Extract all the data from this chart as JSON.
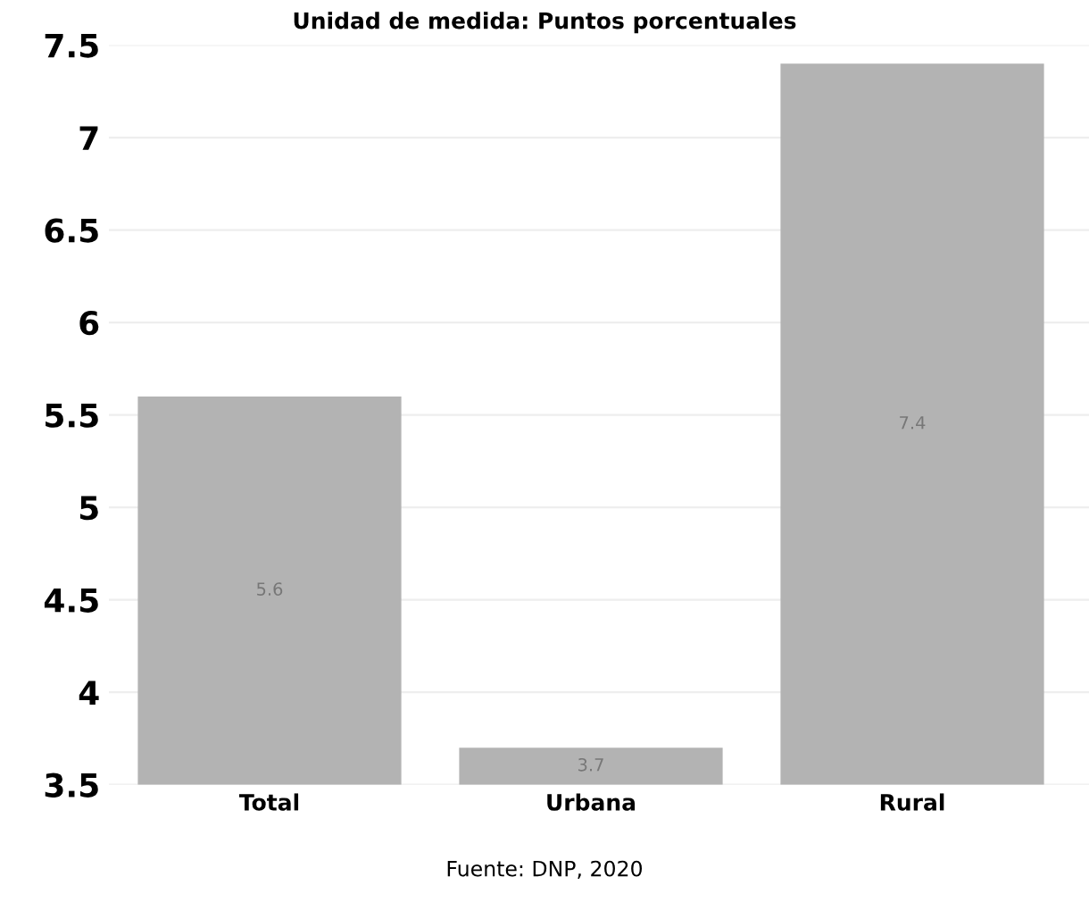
{
  "chart_data": {
    "type": "bar",
    "title": "Unidad de medida: Puntos porcentuales",
    "categories": [
      "Total",
      "Urbana",
      "Rural"
    ],
    "values": [
      5.6,
      3.7,
      7.4
    ],
    "color": "#b3b3b3",
    "ylim": [
      3.5,
      7.5
    ],
    "yticks": [
      3.5,
      4,
      4.5,
      5,
      5.5,
      6,
      6.5,
      7,
      7.5
    ],
    "grid": "y",
    "data_labels": true,
    "annotations": [
      "Fuente: DNP, 2020"
    ]
  }
}
